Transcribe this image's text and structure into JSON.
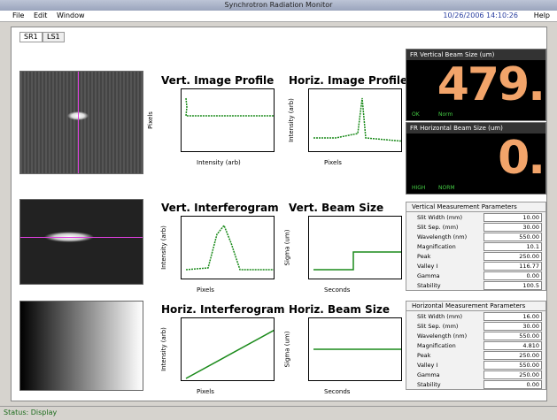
{
  "window": {
    "title": "Synchrotron Radiation Monitor"
  },
  "menu": {
    "items": [
      "File",
      "Edit",
      "Window"
    ],
    "clock": "10/26/2006 14:10:26",
    "help": "Help"
  },
  "tabs": [
    "SR1",
    "LS1"
  ],
  "plots": [
    {
      "title": "Vert. Image Profile",
      "x_label": "Intensity (arb)",
      "y_label": "Pixels"
    },
    {
      "title": "Horiz. Image Profile",
      "x_label": "Pixels",
      "y_label": "Intensity (arb)"
    },
    {
      "title": "Vert. Interferogram",
      "x_label": "Pixels",
      "y_label": "Intensity (arb)"
    },
    {
      "title": "Vert. Beam Size",
      "x_label": "Seconds",
      "y_label": "Sigma (um)"
    },
    {
      "title": "Horiz. Interferogram",
      "x_label": "Pixels",
      "y_label": "Intensity (arb)"
    },
    {
      "title": "Horiz. Beam Size",
      "x_label": "Seconds",
      "y_label": "Sigma (um)"
    }
  ],
  "readouts": [
    {
      "label": "FR Vertical Beam Size (um)",
      "value": "479.",
      "status": [
        "OK",
        "Norm"
      ]
    },
    {
      "label": "FR Horizontal Beam Size (um)",
      "value": "0.",
      "status": [
        "HIGH",
        "NORM"
      ]
    }
  ],
  "params": [
    {
      "title": "Vertical Measurement Parameters",
      "rows": [
        [
          "Slit Width (mm)",
          "10.00"
        ],
        [
          "Slit Sep. (mm)",
          "30.00"
        ],
        [
          "Wavelength (nm)",
          "550.00"
        ],
        [
          "Magnification",
          "10.1"
        ],
        [
          "Peak",
          "250.00"
        ],
        [
          "Valley I",
          "116.77"
        ],
        [
          "Gamma",
          "0.00"
        ],
        [
          "Stability",
          "100.5"
        ]
      ]
    },
    {
      "title": "Horizontal Measurement Parameters",
      "rows": [
        [
          "Slit Width (mm)",
          "16.00"
        ],
        [
          "Slit Sep. (mm)",
          "30.00"
        ],
        [
          "Wavelength (nm)",
          "550.00"
        ],
        [
          "Magnification",
          "4.810"
        ],
        [
          "Peak",
          "250.00"
        ],
        [
          "Valley I",
          "550.00"
        ],
        [
          "Gamma",
          "250.00"
        ],
        [
          "Stability",
          "0.00"
        ]
      ]
    }
  ],
  "status": "Status: Display"
}
